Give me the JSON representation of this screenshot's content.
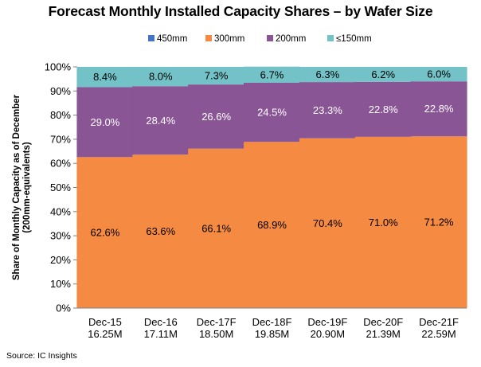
{
  "chart_data": {
    "type": "bar",
    "stacked": true,
    "title": "Forecast Monthly Installed Capacity Shares – by Wafer Size",
    "ylabel": "Share of Monthly Capacity as of December\n(200mm-equivalents)",
    "xlabel": "",
    "ylim": [
      0,
      100
    ],
    "yticks": [
      "0%",
      "10%",
      "20%",
      "30%",
      "40%",
      "50%",
      "60%",
      "70%",
      "80%",
      "90%",
      "100%"
    ],
    "ytick_values": [
      0,
      10,
      20,
      30,
      40,
      50,
      60,
      70,
      80,
      90,
      100
    ],
    "categories": [
      [
        "Dec-15",
        "16.25M"
      ],
      [
        "Dec-16",
        "17.11M"
      ],
      [
        "Dec-17F",
        "18.50M"
      ],
      [
        "Dec-18F",
        "19.85M"
      ],
      [
        "Dec-19F",
        "20.90M"
      ],
      [
        "Dec-20F",
        "21.39M"
      ],
      [
        "Dec-21F",
        "22.59M"
      ]
    ],
    "legend_position": "top",
    "grid": false,
    "series": [
      {
        "name": "450mm",
        "color": "#4472C4",
        "values": [
          0,
          0,
          0,
          0,
          0,
          0,
          0
        ],
        "labels": [
          "",
          "",
          "",
          "",
          "",
          "",
          ""
        ]
      },
      {
        "name": "300mm",
        "color": "#F58A42",
        "values": [
          62.6,
          63.6,
          66.1,
          68.9,
          70.4,
          71.0,
          71.2
        ],
        "labels": [
          "62.6%",
          "63.6%",
          "66.1%",
          "68.9%",
          "70.4%",
          "71.0%",
          "71.2%"
        ],
        "label_color": "#000000"
      },
      {
        "name": "200mm",
        "color": "#8A5595",
        "values": [
          29.0,
          28.4,
          26.6,
          24.5,
          23.3,
          22.8,
          22.8
        ],
        "labels": [
          "29.0%",
          "28.4%",
          "26.6%",
          "24.5%",
          "23.3%",
          "22.8%",
          "22.8%"
        ],
        "label_color": "#ffffff"
      },
      {
        "name": "≤150mm",
        "color": "#72C2C7",
        "values": [
          8.4,
          8.0,
          7.3,
          6.7,
          6.3,
          6.2,
          6.0
        ],
        "labels": [
          "8.4%",
          "8.0%",
          "7.3%",
          "6.7%",
          "6.3%",
          "6.2%",
          "6.0%"
        ],
        "label_color": "#000000"
      }
    ]
  },
  "source": "Source:   IC Insights"
}
